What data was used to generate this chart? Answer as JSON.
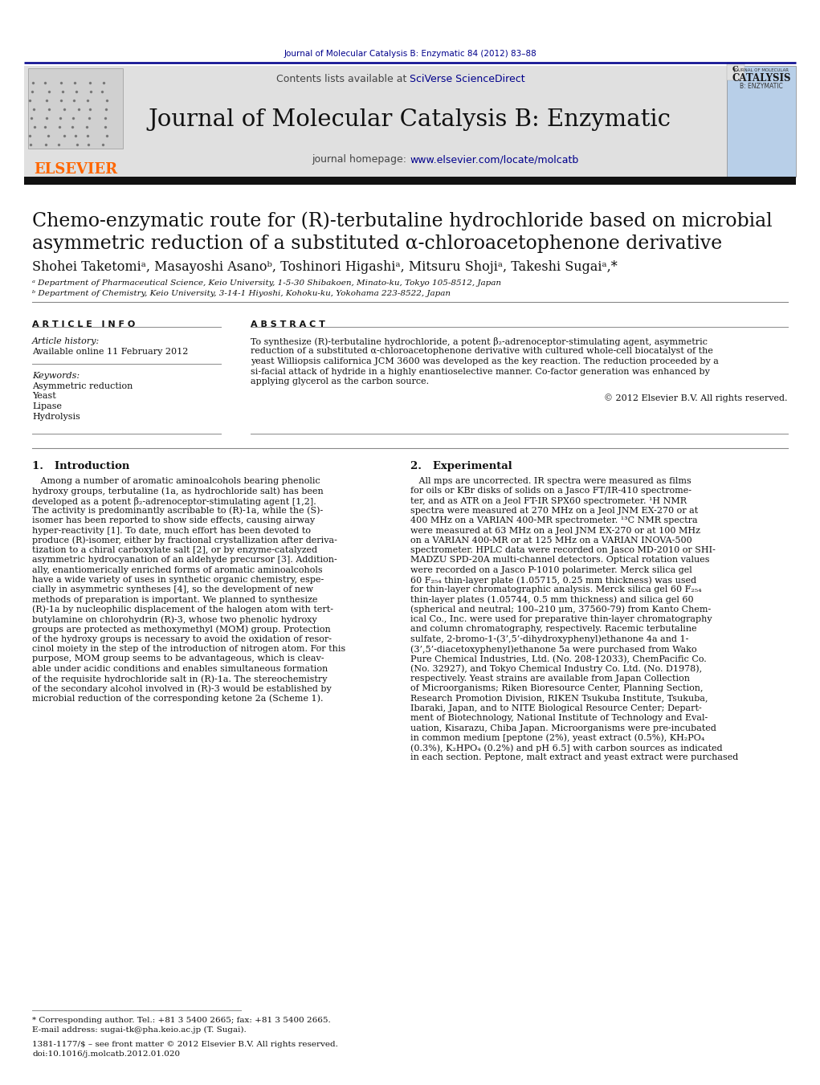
{
  "page_bg": "#ffffff",
  "top_line_color": "#00008B",
  "header_bg": "#e8e8e8",
  "journal_title": "Journal of Molecular Catalysis B: Enzymatic",
  "journal_ref": "Journal of Molecular Catalysis B: Enzymatic 84 (2012) 83–88",
  "contents_text": "Contents lists available at ",
  "sciverse_text": "SciVerse ScienceDirect",
  "homepage_text": "journal homepage: ",
  "homepage_url": "www.elsevier.com/locate/molcatb",
  "elsevier_color": "#FF6600",
  "link_color": "#00008B",
  "article_title_line1": "Chemo-enzymatic route for (R)-terbutaline hydrochloride based on microbial",
  "article_title_line2": "asymmetric reduction of a substituted α-chloroacetophenone derivative",
  "authors": "Shohei Taketomiᵃ, Masayoshi Asanoᵇ, Toshinori Higashiᵃ, Mitsuru Shojiᵃ, Takeshi Sugaiᵃ,*",
  "affil_a": "ᵃ Department of Pharmaceutical Science, Keio University, 1-5-30 Shibakoen, Minato-ku, Tokyo 105-8512, Japan",
  "affil_b": "ᵇ Department of Chemistry, Keio University, 3-14-1 Hiyoshi, Kohoku-ku, Yokohama 223-8522, Japan",
  "article_info_header": "A R T I C L E   I N F O",
  "abstract_header": "A B S T R A C T",
  "article_history": "Article history:",
  "available_online": "Available online 11 February 2012",
  "keywords_header": "Keywords:",
  "keywords": [
    "Asymmetric reduction",
    "Yeast",
    "Lipase",
    "Hydrolysis"
  ],
  "abstract_lines": [
    "To synthesize (R)-terbutaline hydrochloride, a potent β₂-adrenoceptor-stimulating agent, asymmetric",
    "reduction of a substituted α-chloroacetophenone derivative with cultured whole-cell biocatalyst of the",
    "yeast Williopsis californica JCM 3600 was developed as the key reaction. The reduction proceeded by a",
    "si-facial attack of hydride in a highly enantioselective manner. Co-factor generation was enhanced by",
    "applying glycerol as the carbon source."
  ],
  "abstract_copyright": "© 2012 Elsevier B.V. All rights reserved.",
  "section1_title": "1.   Introduction",
  "section1_lines": [
    "   Among a number of aromatic aminoalcohols bearing phenolic",
    "hydroxy groups, terbutaline (1a, as hydrochloride salt) has been",
    "developed as a potent β₂-adrenoceptor-stimulating agent [1,2].",
    "The activity is predominantly ascribable to (R)-1a, while the (S)-",
    "isomer has been reported to show side effects, causing airway",
    "hyper-reactivity [1]. To date, much effort has been devoted to",
    "produce (R)-isomer, either by fractional crystallization after deriva-",
    "tization to a chiral carboxylate salt [2], or by enzyme-catalyzed",
    "asymmetric hydrocyanation of an aldehyde precursor [3]. Addition-",
    "ally, enantiomerically enriched forms of aromatic aminoalcohols",
    "have a wide variety of uses in synthetic organic chemistry, espe-",
    "cially in asymmetric syntheses [4], so the development of new",
    "methods of preparation is important. We planned to synthesize",
    "(R)-1a by nucleophilic displacement of the halogen atom with tert-",
    "butylamine on chlorohydrin (R)-3, whose two phenolic hydroxy",
    "groups are protected as methoxymethyl (MOM) group. Protection",
    "of the hydroxy groups is necessary to avoid the oxidation of resor-",
    "cinol moiety in the step of the introduction of nitrogen atom. For this",
    "purpose, MOM group seems to be advantageous, which is cleav-",
    "able under acidic conditions and enables simultaneous formation",
    "of the requisite hydrochloride salt in (R)-1a. The stereochemistry",
    "of the secondary alcohol involved in (R)-3 would be established by",
    "microbial reduction of the corresponding ketone 2a (Scheme 1)."
  ],
  "section2_title": "2.   Experimental",
  "section2_lines": [
    "   All mps are uncorrected. IR spectra were measured as films",
    "for oils or KBr disks of solids on a Jasco FT/IR-410 spectrome-",
    "ter, and as ATR on a Jeol FT-IR SPX60 spectrometer. ¹H NMR",
    "spectra were measured at 270 MHz on a Jeol JNM EX-270 or at",
    "400 MHz on a VARIAN 400-MR spectrometer. ¹³C NMR spectra",
    "were measured at 63 MHz on a Jeol JNM EX-270 or at 100 MHz",
    "on a VARIAN 400-MR or at 125 MHz on a VARIAN INOVA-500",
    "spectrometer. HPLC data were recorded on Jasco MD-2010 or SHI-",
    "MADZU SPD-20A multi-channel detectors. Optical rotation values",
    "were recorded on a Jasco P-1010 polarimeter. Merck silica gel",
    "60 F₂₅₄ thin-layer plate (1.05715, 0.25 mm thickness) was used",
    "for thin-layer chromatographic analysis. Merck silica gel 60 F₂₅₄",
    "thin-layer plates (1.05744, 0.5 mm thickness) and silica gel 60",
    "(spherical and neutral; 100–210 μm, 37560-79) from Kanto Chem-",
    "ical Co., Inc. were used for preparative thin-layer chromatography",
    "and column chromatography, respectively. Racemic terbutaline",
    "sulfate, 2-bromo-1-(3’,5’-dihydroxyphenyl)ethanone 4a and 1-",
    "(3’,5’-diacetoxyphenyl)ethanone 5a were purchased from Wako",
    "Pure Chemical Industries, Ltd. (No. 208-12033), ChemPacific Co.",
    "(No. 32927), and Tokyo Chemical Industry Co. Ltd. (No. D1978),",
    "respectively. Yeast strains are available from Japan Collection",
    "of Microorganisms; Riken Bioresource Center, Planning Section,",
    "Research Promotion Division, RIKEN Tsukuba Institute, Tsukuba,",
    "Ibaraki, Japan, and to NITE Biological Resource Center; Depart-",
    "ment of Biotechnology, National Institute of Technology and Eval-",
    "uation, Kisarazu, Chiba Japan. Microorganisms were pre-incubated",
    "in common medium [peptone (2%), yeast extract (0.5%), KH₂PO₄",
    "(0.3%), K₂HPO₄ (0.2%) and pH 6.5] with carbon sources as indicated",
    "in each section. Peptone, malt extract and yeast extract were purchased"
  ],
  "footnote_star": "* Corresponding author. Tel.: +81 3 5400 2665; fax: +81 3 5400 2665.",
  "footnote_email": "E-mail address: sugai-tk@pha.keio.ac.jp (T. Sugai).",
  "footnote_issn": "1381-1177/$ – see front matter © 2012 Elsevier B.V. All rights reserved.",
  "footnote_doi": "doi:10.1016/j.molcatb.2012.01.020",
  "dark_bar_color": "#111111"
}
